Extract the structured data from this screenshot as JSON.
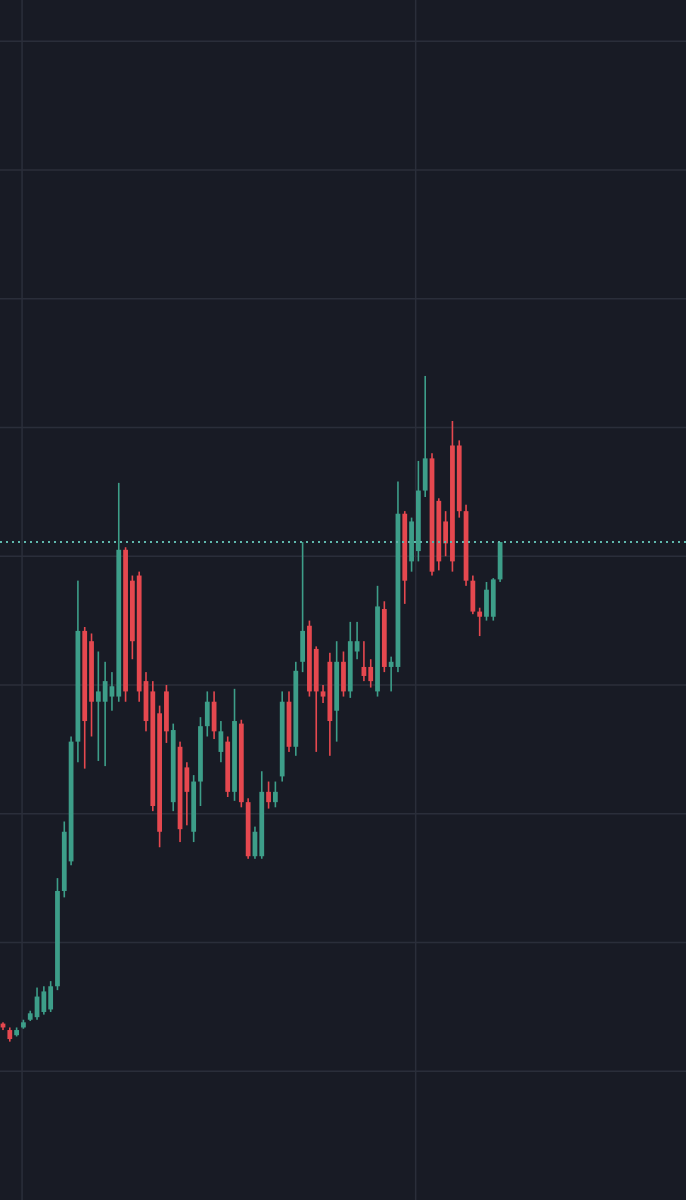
{
  "chart_data": {
    "type": "candlestick",
    "xlim": [
      -0.44,
      100.3
    ],
    "ylim": [
      0,
      9.32
    ],
    "ygrid": [
      1,
      2,
      3,
      4,
      5,
      6,
      7,
      8,
      9
    ],
    "xgrid": [
      2.8,
      60.6
    ],
    "grid": true,
    "up_color": "#3d9e89",
    "down_color": "#e5484f",
    "grid_color": "#2a2e3a",
    "last_price": 5.11,
    "last_price_color": "#5fb8ad",
    "open": [
      1.37,
      1.32,
      1.28,
      1.34,
      1.4,
      1.42,
      1.46,
      1.48,
      1.66,
      2.4,
      2.63,
      3.56,
      4.42,
      4.34,
      3.87,
      3.87,
      3.91,
      3.91,
      5.05,
      4.81,
      4.85,
      4.03,
      3.95,
      3.78,
      3.95,
      3.09,
      3.52,
      3.36,
      2.86,
      3.25,
      3.68,
      3.87,
      3.48,
      3.56,
      3.17,
      3.7,
      3.09,
      2.67,
      2.67,
      3.17,
      3.09,
      3.29,
      3.87,
      3.52,
      4.18,
      4.46,
      4.28,
      3.95,
      4.18,
      3.8,
      4.18,
      3.95,
      4.26,
      4.14,
      4.14,
      3.95,
      4.59,
      4.14,
      4.14,
      5.33,
      4.96,
      5.04,
      5.51,
      5.76,
      5.43,
      5.27,
      5.86,
      5.86,
      5.35,
      4.81,
      4.57,
      4.53,
      4.53,
      4.82
    ],
    "high": [
      1.38,
      1.34,
      1.34,
      1.4,
      1.47,
      1.65,
      1.66,
      1.7,
      2.5,
      2.94,
      3.6,
      4.81,
      4.45,
      4.4,
      4.26,
      4.18,
      4.1,
      5.57,
      5.07,
      4.85,
      4.88,
      4.1,
      4.03,
      3.84,
      4.0,
      3.7,
      3.56,
      3.4,
      3.3,
      3.75,
      3.95,
      3.95,
      3.72,
      3.6,
      3.97,
      3.73,
      3.12,
      2.9,
      3.33,
      3.25,
      3.25,
      3.95,
      3.95,
      4.18,
      5.11,
      4.5,
      4.3,
      4.0,
      4.25,
      4.34,
      4.26,
      4.49,
      4.49,
      4.34,
      4.2,
      4.77,
      4.65,
      4.22,
      5.58,
      5.35,
      5.3,
      5.74,
      6.4,
      5.8,
      5.45,
      5.35,
      6.05,
      5.9,
      5.4,
      4.85,
      4.6,
      4.8,
      4.83,
      5.11
    ],
    "low": [
      1.32,
      1.23,
      1.27,
      1.33,
      1.39,
      1.4,
      1.44,
      1.46,
      1.63,
      2.35,
      2.6,
      3.4,
      3.35,
      3.6,
      3.41,
      3.37,
      3.8,
      3.87,
      3.87,
      4.2,
      3.87,
      3.64,
      3.02,
      2.74,
      3.55,
      3.02,
      2.78,
      2.91,
      2.78,
      3.06,
      3.6,
      3.58,
      3.4,
      3.13,
      3.1,
      3.05,
      2.65,
      2.65,
      2.65,
      3.04,
      3.05,
      3.25,
      3.48,
      3.45,
      4.1,
      3.91,
      3.48,
      3.86,
      3.45,
      3.56,
      3.91,
      3.9,
      4.2,
      4.03,
      3.98,
      3.91,
      4.1,
      3.95,
      4.1,
      4.63,
      4.88,
      4.96,
      5.46,
      4.85,
      4.89,
      5.0,
      4.88,
      5.3,
      4.77,
      4.55,
      4.38,
      4.5,
      4.5,
      4.8
    ],
    "close": [
      1.34,
      1.25,
      1.32,
      1.38,
      1.45,
      1.58,
      1.62,
      1.66,
      2.4,
      2.86,
      3.56,
      4.42,
      3.72,
      3.87,
      3.95,
      4.03,
      3.99,
      5.05,
      3.95,
      4.34,
      3.95,
      3.72,
      3.06,
      2.86,
      3.64,
      3.65,
      2.88,
      3.17,
      3.25,
      3.68,
      3.87,
      3.64,
      3.64,
      3.17,
      3.72,
      3.09,
      2.67,
      2.86,
      3.17,
      3.09,
      3.17,
      3.87,
      3.52,
      4.11,
      4.42,
      3.95,
      3.95,
      3.91,
      3.72,
      4.18,
      3.95,
      4.34,
      4.34,
      4.07,
      4.03,
      4.61,
      4.14,
      4.18,
      5.33,
      4.81,
      5.27,
      5.51,
      5.76,
      4.88,
      4.96,
      5.1,
      4.96,
      5.35,
      4.81,
      4.57,
      4.53,
      4.74,
      4.82,
      5.11
    ]
  }
}
